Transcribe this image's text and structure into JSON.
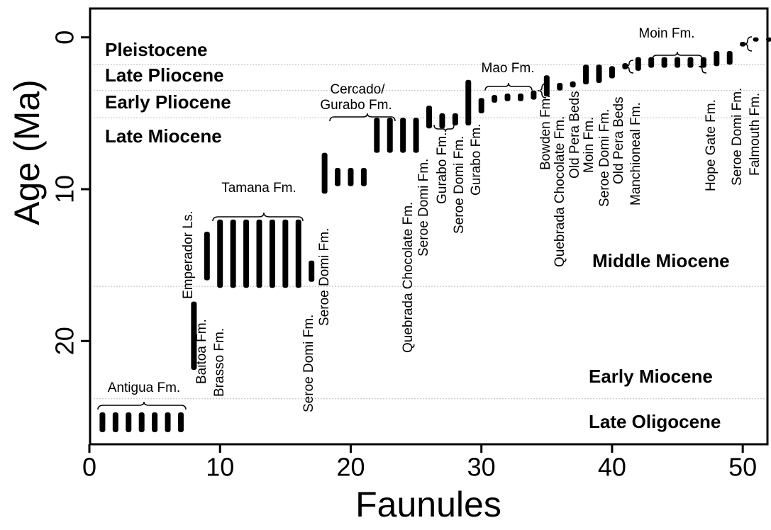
{
  "chart_data": {
    "type": "range",
    "xlabel": "Faunules",
    "ylabel": "Age (Ma)",
    "xlim": [
      0,
      52
    ],
    "ylim": [
      -1.9,
      26.8
    ],
    "y_reversed": true,
    "xticks": [
      0,
      10,
      20,
      30,
      40,
      50
    ],
    "yticks": [
      0,
      10,
      20
    ],
    "color": "#000000",
    "x": [
      1,
      2,
      3,
      4,
      5,
      6,
      7,
      8,
      9,
      10,
      11,
      12,
      13,
      14,
      15,
      16,
      17,
      18,
      19,
      20,
      21,
      22,
      23,
      24,
      25,
      26,
      27,
      28,
      29,
      30,
      31,
      32,
      33,
      34,
      35,
      36,
      37,
      38,
      39,
      40,
      41,
      42,
      43,
      44,
      45,
      46,
      47,
      48,
      49,
      50,
      51,
      52
    ],
    "top": [
      24.7,
      24.7,
      24.7,
      24.7,
      24.7,
      24.7,
      24.7,
      17.4,
      12.8,
      12.0,
      12.0,
      12.0,
      12.0,
      12.0,
      12.0,
      12.0,
      14.7,
      7.6,
      8.6,
      8.6,
      8.6,
      5.3,
      5.3,
      5.3,
      5.3,
      4.5,
      5.0,
      5.0,
      2.8,
      4.0,
      3.8,
      3.7,
      3.7,
      3.5,
      2.5,
      3.0,
      2.9,
      1.8,
      1.8,
      1.9,
      1.7,
      1.3,
      1.3,
      1.3,
      1.3,
      1.3,
      1.3,
      0.9,
      0.9,
      0.3,
      0.0,
      0.0
    ],
    "bottom": [
      26.0,
      26.0,
      26.0,
      26.0,
      26.0,
      26.0,
      26.0,
      21.9,
      16.0,
      16.5,
      16.5,
      16.5,
      16.5,
      16.5,
      16.5,
      16.5,
      16.1,
      10.3,
      9.8,
      9.8,
      9.8,
      7.6,
      7.6,
      7.6,
      7.6,
      6.0,
      6.0,
      5.8,
      5.8,
      5.0,
      4.3,
      4.2,
      4.2,
      4.1,
      3.9,
      3.5,
      3.3,
      3.1,
      3.0,
      2.7,
      2.1,
      2.2,
      2.0,
      2.0,
      2.0,
      2.0,
      2.0,
      1.9,
      1.8,
      0.6,
      0.2,
      0.2
    ],
    "boundaries": [
      1.8,
      3.5,
      5.3,
      16.4,
      23.8
    ],
    "epochs": [
      "Pleistocene",
      "Late Pliocene",
      "Early Pliocene",
      "Late Miocene",
      "Middle Miocene",
      "Early Miocene",
      "Late Oligocene"
    ],
    "group_labels": [
      "Antigua Fm.",
      "Tamana Fm.",
      "Cercado/",
      "Gurabo Fm.",
      "Mao Fm.",
      "Moin Fm."
    ],
    "formation_labels": [
      "Emperador Ls.",
      "Baitoa Fm.",
      "Brasso Fm.",
      "Seroe Domi Fm.",
      "Seroe Domi Fm.",
      "Quebrada Chocolate Fm.",
      "Seroe Domi Fm.",
      "Gurabo Fm.",
      "Seroe Domi Fm.",
      "Gurabo Fm.",
      "Bowden Fm.",
      "Quebrada Chocolate Fm.",
      "Old Pera Beds",
      "Moin Fm.",
      "Seroe Domi Fm.",
      "Old Pera Beds",
      "Manchioneal Fm.",
      "Hope Gate Fm.",
      "Seroe Domi Fm.",
      "Falmouth Fm."
    ]
  }
}
